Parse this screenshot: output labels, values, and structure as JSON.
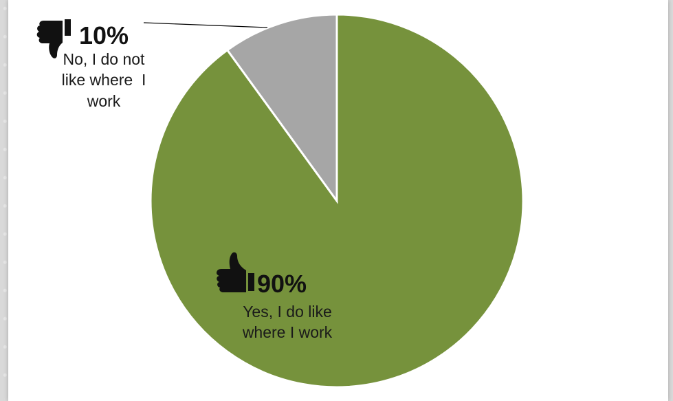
{
  "chart_data": {
    "type": "pie",
    "title": "",
    "slices": [
      {
        "label": "Yes, I do like where I work",
        "value": 90,
        "percent_label": "90%",
        "label_lines": [
          "Yes, I do like",
          "where I work"
        ],
        "color": "#76923c",
        "icon": "thumbs-up-icon"
      },
      {
        "label": "No, I do not like where I work",
        "value": 10,
        "percent_label": "10%",
        "label_lines": [
          "No, I do not",
          "like where  I",
          "work"
        ],
        "color": "#a6a6a6",
        "icon": "thumbs-down-icon"
      }
    ],
    "start_angle": "12 o'clock",
    "direction": "clockwise",
    "slice_border_color": "#ffffff",
    "legend": "none"
  }
}
